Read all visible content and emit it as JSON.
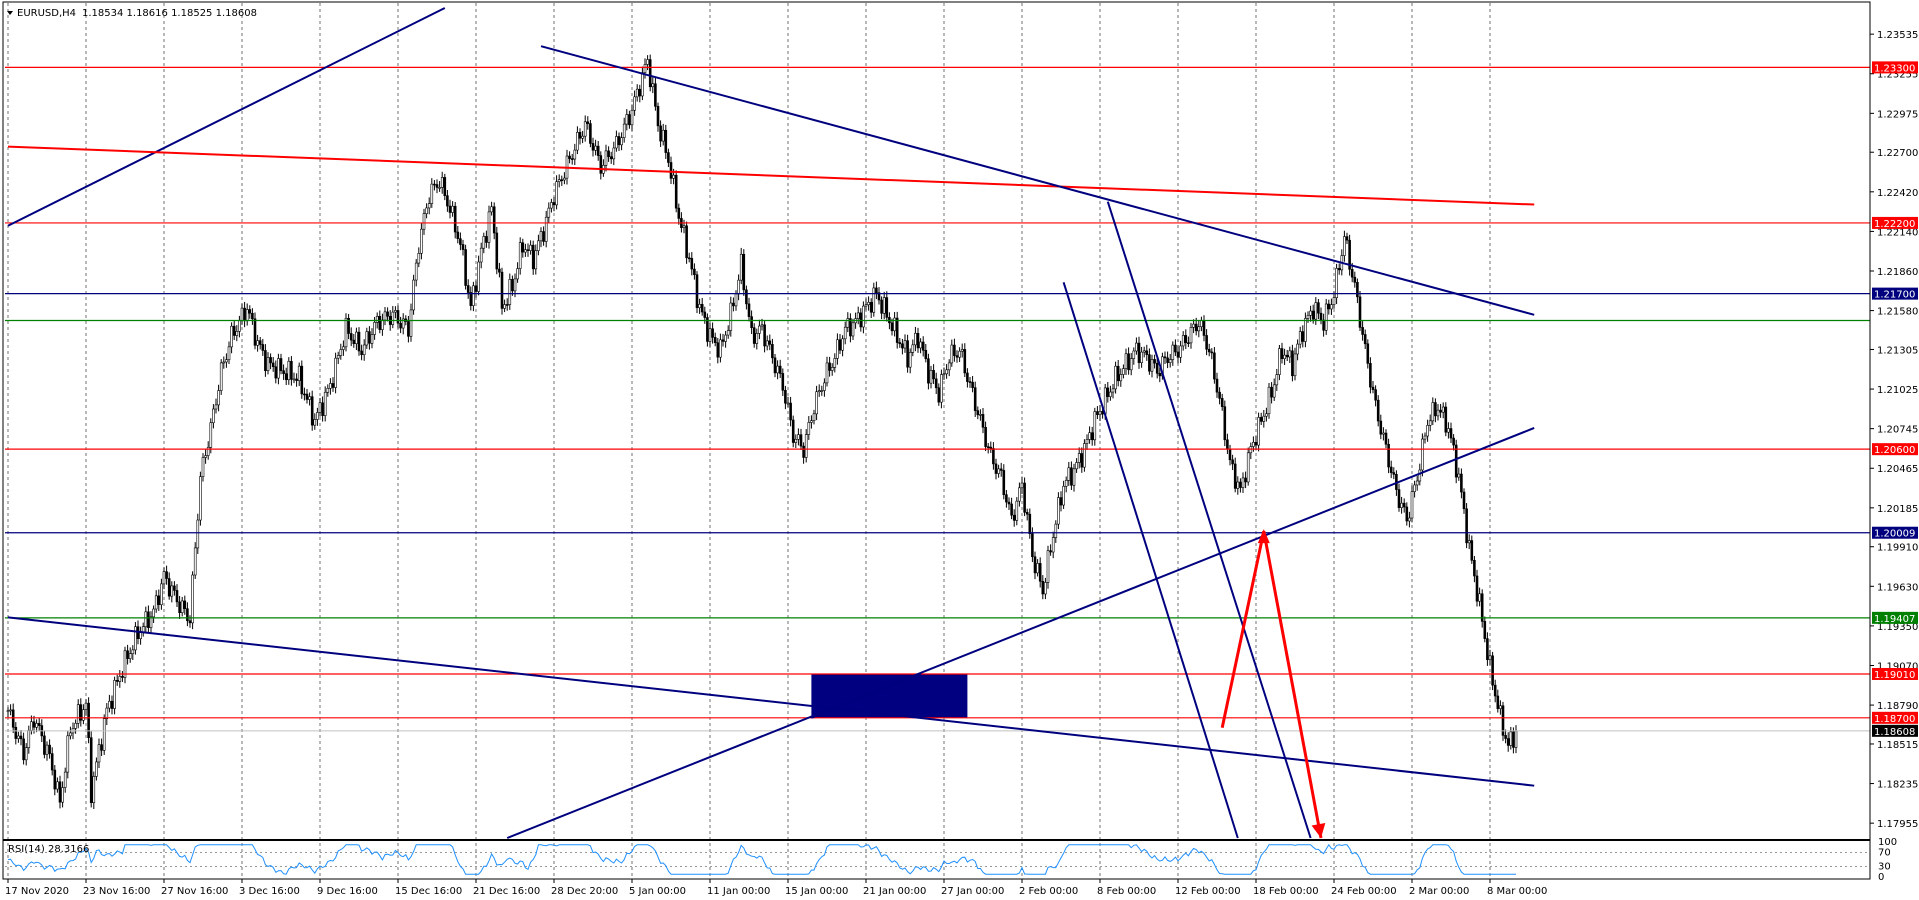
{
  "header": {
    "symbol": "EURUSD,H4",
    "ohlc": "1.18534 1.18616 1.18525 1.18608"
  },
  "chart_data": {
    "type": "candlestick",
    "xlabel": "",
    "ylabel": "",
    "ylim": [
      1.1785,
      1.2372
    ],
    "y_ticks": [
      "1.23535",
      "1.23255",
      "1.22975",
      "1.22700",
      "1.22420",
      "1.22140",
      "1.21860",
      "1.21580",
      "1.21305",
      "1.21025",
      "1.20745",
      "1.20465",
      "1.20185",
      "1.19910",
      "1.19630",
      "1.19350",
      "1.19070",
      "1.18790",
      "1.18515",
      "1.18235",
      "1.17955"
    ],
    "x_ticks": [
      {
        "i": 0,
        "label": "17 Nov 2020"
      },
      {
        "i": 30,
        "label": "23 Nov 16:00"
      },
      {
        "i": 60,
        "label": "27 Nov 16:00"
      },
      {
        "i": 90,
        "label": "3 Dec 16:00"
      },
      {
        "i": 120,
        "label": "9 Dec 16:00"
      },
      {
        "i": 150,
        "label": "15 Dec 16:00"
      },
      {
        "i": 180,
        "label": "21 Dec 16:00"
      },
      {
        "i": 210,
        "label": "28 Dec 20:00"
      },
      {
        "i": 240,
        "label": "5 Jan 00:00"
      },
      {
        "i": 270,
        "label": "11 Jan 00:00"
      },
      {
        "i": 300,
        "label": "15 Jan 00:00"
      },
      {
        "i": 330,
        "label": "21 Jan 00:00"
      },
      {
        "i": 360,
        "label": "27 Jan 00:00"
      },
      {
        "i": 390,
        "label": "2 Feb 00:00"
      },
      {
        "i": 420,
        "label": "8 Feb 00:00"
      },
      {
        "i": 450,
        "label": "12 Feb 00:00"
      },
      {
        "i": 480,
        "label": "18 Feb 00:00"
      },
      {
        "i": 510,
        "label": "24 Feb 00:00"
      },
      {
        "i": 540,
        "label": "2 Mar 00:00"
      },
      {
        "i": 570,
        "label": "8 Mar 00:00"
      }
    ],
    "anchors": [
      [
        0,
        1.1875
      ],
      [
        6,
        1.1845
      ],
      [
        10,
        1.187
      ],
      [
        16,
        1.1842
      ],
      [
        20,
        1.181
      ],
      [
        24,
        1.1862
      ],
      [
        30,
        1.188
      ],
      [
        32,
        1.1818
      ],
      [
        38,
        1.1875
      ],
      [
        44,
        1.1905
      ],
      [
        50,
        1.193
      ],
      [
        56,
        1.1945
      ],
      [
        60,
        1.197
      ],
      [
        66,
        1.195
      ],
      [
        70,
        1.194
      ],
      [
        74,
        1.204
      ],
      [
        78,
        1.2075
      ],
      [
        82,
        1.2115
      ],
      [
        86,
        1.214
      ],
      [
        92,
        1.216
      ],
      [
        96,
        1.2135
      ],
      [
        100,
        1.212
      ],
      [
        106,
        1.2115
      ],
      [
        112,
        1.211
      ],
      [
        118,
        1.208
      ],
      [
        124,
        1.2105
      ],
      [
        130,
        1.2145
      ],
      [
        136,
        1.213
      ],
      [
        142,
        1.215
      ],
      [
        148,
        1.2155
      ],
      [
        154,
        1.2145
      ],
      [
        158,
        1.2205
      ],
      [
        162,
        1.224
      ],
      [
        166,
        1.225
      ],
      [
        170,
        1.223
      ],
      [
        174,
        1.2205
      ],
      [
        178,
        1.216
      ],
      [
        182,
        1.22
      ],
      [
        186,
        1.223
      ],
      [
        190,
        1.216
      ],
      [
        194,
        1.2175
      ],
      [
        198,
        1.2205
      ],
      [
        202,
        1.2195
      ],
      [
        206,
        1.2215
      ],
      [
        210,
        1.224
      ],
      [
        216,
        1.2265
      ],
      [
        222,
        1.229
      ],
      [
        228,
        1.226
      ],
      [
        234,
        1.2275
      ],
      [
        240,
        1.23
      ],
      [
        246,
        1.2335
      ],
      [
        250,
        1.229
      ],
      [
        254,
        1.2265
      ],
      [
        258,
        1.2225
      ],
      [
        262,
        1.2195
      ],
      [
        266,
        1.216
      ],
      [
        270,
        1.214
      ],
      [
        274,
        1.213
      ],
      [
        278,
        1.2155
      ],
      [
        282,
        1.219
      ],
      [
        286,
        1.214
      ],
      [
        290,
        1.2145
      ],
      [
        294,
        1.2125
      ],
      [
        298,
        1.2105
      ],
      [
        302,
        1.207
      ],
      [
        306,
        1.206
      ],
      [
        310,
        1.209
      ],
      [
        314,
        1.211
      ],
      [
        318,
        1.2125
      ],
      [
        322,
        1.2145
      ],
      [
        326,
        1.215
      ],
      [
        330,
        1.216
      ],
      [
        334,
        1.217
      ],
      [
        338,
        1.2155
      ],
      [
        342,
        1.214
      ],
      [
        346,
        1.2125
      ],
      [
        350,
        1.214
      ],
      [
        354,
        1.2115
      ],
      [
        358,
        1.21
      ],
      [
        362,
        1.2125
      ],
      [
        366,
        1.213
      ],
      [
        370,
        1.2105
      ],
      [
        374,
        1.208
      ],
      [
        378,
        1.2055
      ],
      [
        382,
        1.204
      ],
      [
        386,
        1.201
      ],
      [
        390,
        1.2035
      ],
      [
        394,
        1.1985
      ],
      [
        398,
        1.196
      ],
      [
        402,
        1.2
      ],
      [
        406,
        1.2035
      ],
      [
        410,
        1.2045
      ],
      [
        414,
        1.206
      ],
      [
        418,
        1.208
      ],
      [
        422,
        1.2095
      ],
      [
        426,
        1.211
      ],
      [
        430,
        1.212
      ],
      [
        434,
        1.213
      ],
      [
        438,
        1.2125
      ],
      [
        442,
        1.2115
      ],
      [
        446,
        1.2125
      ],
      [
        450,
        1.213
      ],
      [
        454,
        1.214
      ],
      [
        458,
        1.215
      ],
      [
        462,
        1.213
      ],
      [
        466,
        1.2095
      ],
      [
        470,
        1.205
      ],
      [
        474,
        1.203
      ],
      [
        478,
        1.206
      ],
      [
        482,
        1.208
      ],
      [
        486,
        1.21
      ],
      [
        490,
        1.213
      ],
      [
        494,
        1.212
      ],
      [
        498,
        1.2145
      ],
      [
        502,
        1.216
      ],
      [
        506,
        1.215
      ],
      [
        510,
        1.217
      ],
      [
        514,
        1.221
      ],
      [
        518,
        1.2175
      ],
      [
        522,
        1.213
      ],
      [
        526,
        1.209
      ],
      [
        530,
        1.206
      ],
      [
        534,
        1.203
      ],
      [
        538,
        1.201
      ],
      [
        542,
        1.204
      ],
      [
        546,
        1.208
      ],
      [
        550,
        1.209
      ],
      [
        554,
        1.2075
      ],
      [
        558,
        1.204
      ],
      [
        562,
        1.199
      ],
      [
        566,
        1.195
      ],
      [
        570,
        1.1905
      ],
      [
        574,
        1.187
      ],
      [
        577,
        1.185
      ],
      [
        580,
        1.186
      ]
    ],
    "rsi": {
      "label": "RSI(14) 28.3166",
      "levels": [
        100,
        70,
        30,
        0
      ],
      "last": 28.3166
    },
    "horizontal_levels": [
      {
        "price": 1.233,
        "label": "1.23300",
        "color": "#ff0000"
      },
      {
        "price": 1.222,
        "label": "1.22200",
        "color": "#ff0000"
      },
      {
        "price": 1.217,
        "label": "1.21700",
        "color": "#00007f"
      },
      {
        "price": 1.2151,
        "label": "",
        "color": "#008000"
      },
      {
        "price": 1.206,
        "label": "1.20600",
        "color": "#ff0000"
      },
      {
        "price": 1.20009,
        "label": "1.20009",
        "color": "#00007f"
      },
      {
        "price": 1.19407,
        "label": "1.19407",
        "color": "#008000"
      },
      {
        "price": 1.1901,
        "label": "1.19010",
        "color": "#ff0000"
      },
      {
        "price": 1.187,
        "label": "1.18700",
        "color": "#ff0000"
      }
    ],
    "current_price": {
      "price": 1.18608,
      "label": "1.18608"
    },
    "trendlines": [
      {
        "color": "#00007f",
        "i1": 0,
        "p1": 1.2218,
        "i2": 168,
        "p2": 1.2372
      },
      {
        "color": "#ff0000",
        "i1": 0,
        "p1": 1.2274,
        "i2": 587,
        "p2": 1.2233
      },
      {
        "color": "#00007f",
        "i1": 205,
        "p1": 1.2345,
        "i2": 587,
        "p2": 1.2155
      },
      {
        "color": "#00007f",
        "i1": 0,
        "p1": 1.1941,
        "i2": 587,
        "p2": 1.1822
      },
      {
        "color": "#00007f",
        "i1": 192,
        "p1": 1.1785,
        "i2": 587,
        "p2": 1.2075
      },
      {
        "color": "#00007f",
        "i1": 309,
        "p1": 1.187,
        "i2": 351,
        "p2": 1.1901
      },
      {
        "color": "#00007f",
        "i1": 423,
        "p1": 1.2235,
        "i2": 501,
        "p2": 1.1785
      },
      {
        "color": "#00007f",
        "i1": 406,
        "p1": 1.2178,
        "i2": 473,
        "p2": 1.1785
      }
    ],
    "zone": {
      "i1": 309,
      "i2": 369,
      "p1": 1.1901,
      "p2": 1.187,
      "color": "#000080"
    },
    "arrows": [
      {
        "color": "#ff0000",
        "points": [
          [
            467,
            1.1863
          ],
          [
            483,
            1.2002
          ],
          [
            505,
            1.1785
          ]
        ]
      }
    ],
    "colors": {
      "candle_up": "#000000",
      "candle_down": "#000000",
      "up_body": "#ffffff",
      "down_body": "#000000",
      "grid": "#000000",
      "rsi": "#1e90ff"
    },
    "grid": true,
    "legend": "none"
  }
}
